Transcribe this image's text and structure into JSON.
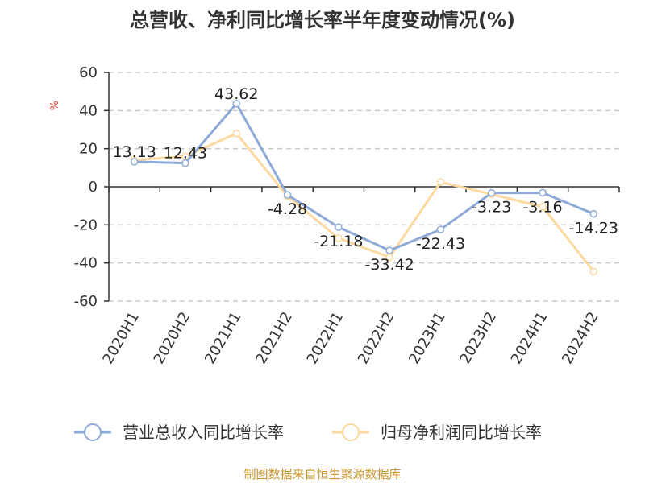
{
  "chart_data": {
    "type": "line",
    "title": "总营收、净利同比增长率半年度变动情况(%)",
    "ylabel": "%",
    "ylim": [
      -60,
      60
    ],
    "yticks": [
      60,
      40,
      20,
      0,
      -20,
      -40,
      -60
    ],
    "categories": [
      "2020H1",
      "2020H2",
      "2021H1",
      "2021H2",
      "2022H1",
      "2022H2",
      "2023H1",
      "2023H2",
      "2024H1",
      "2024H2"
    ],
    "grid": true,
    "legend_position": "bottom",
    "series": [
      {
        "name": "营业总收入同比增长率",
        "color": "#8eaad6",
        "values": [
          13.13,
          12.43,
          43.62,
          -4.28,
          -21.18,
          -33.42,
          -22.43,
          -3.23,
          -3.16,
          -14.23
        ],
        "labels": [
          "13.13",
          "12.43",
          "43.62",
          "-4.28",
          "-21.18",
          "-33.42",
          "-22.43",
          "-3.23",
          "-3.16",
          "-14.23"
        ]
      },
      {
        "name": "归母净利润同比增长率",
        "color": "#fcd9a0",
        "values": [
          14.0,
          16.0,
          28.0,
          -5.0,
          -27.0,
          -37.0,
          2.5,
          -4.0,
          -10.5,
          -44.5
        ]
      }
    ]
  },
  "footer": "制图数据来自恒生聚源数据库"
}
